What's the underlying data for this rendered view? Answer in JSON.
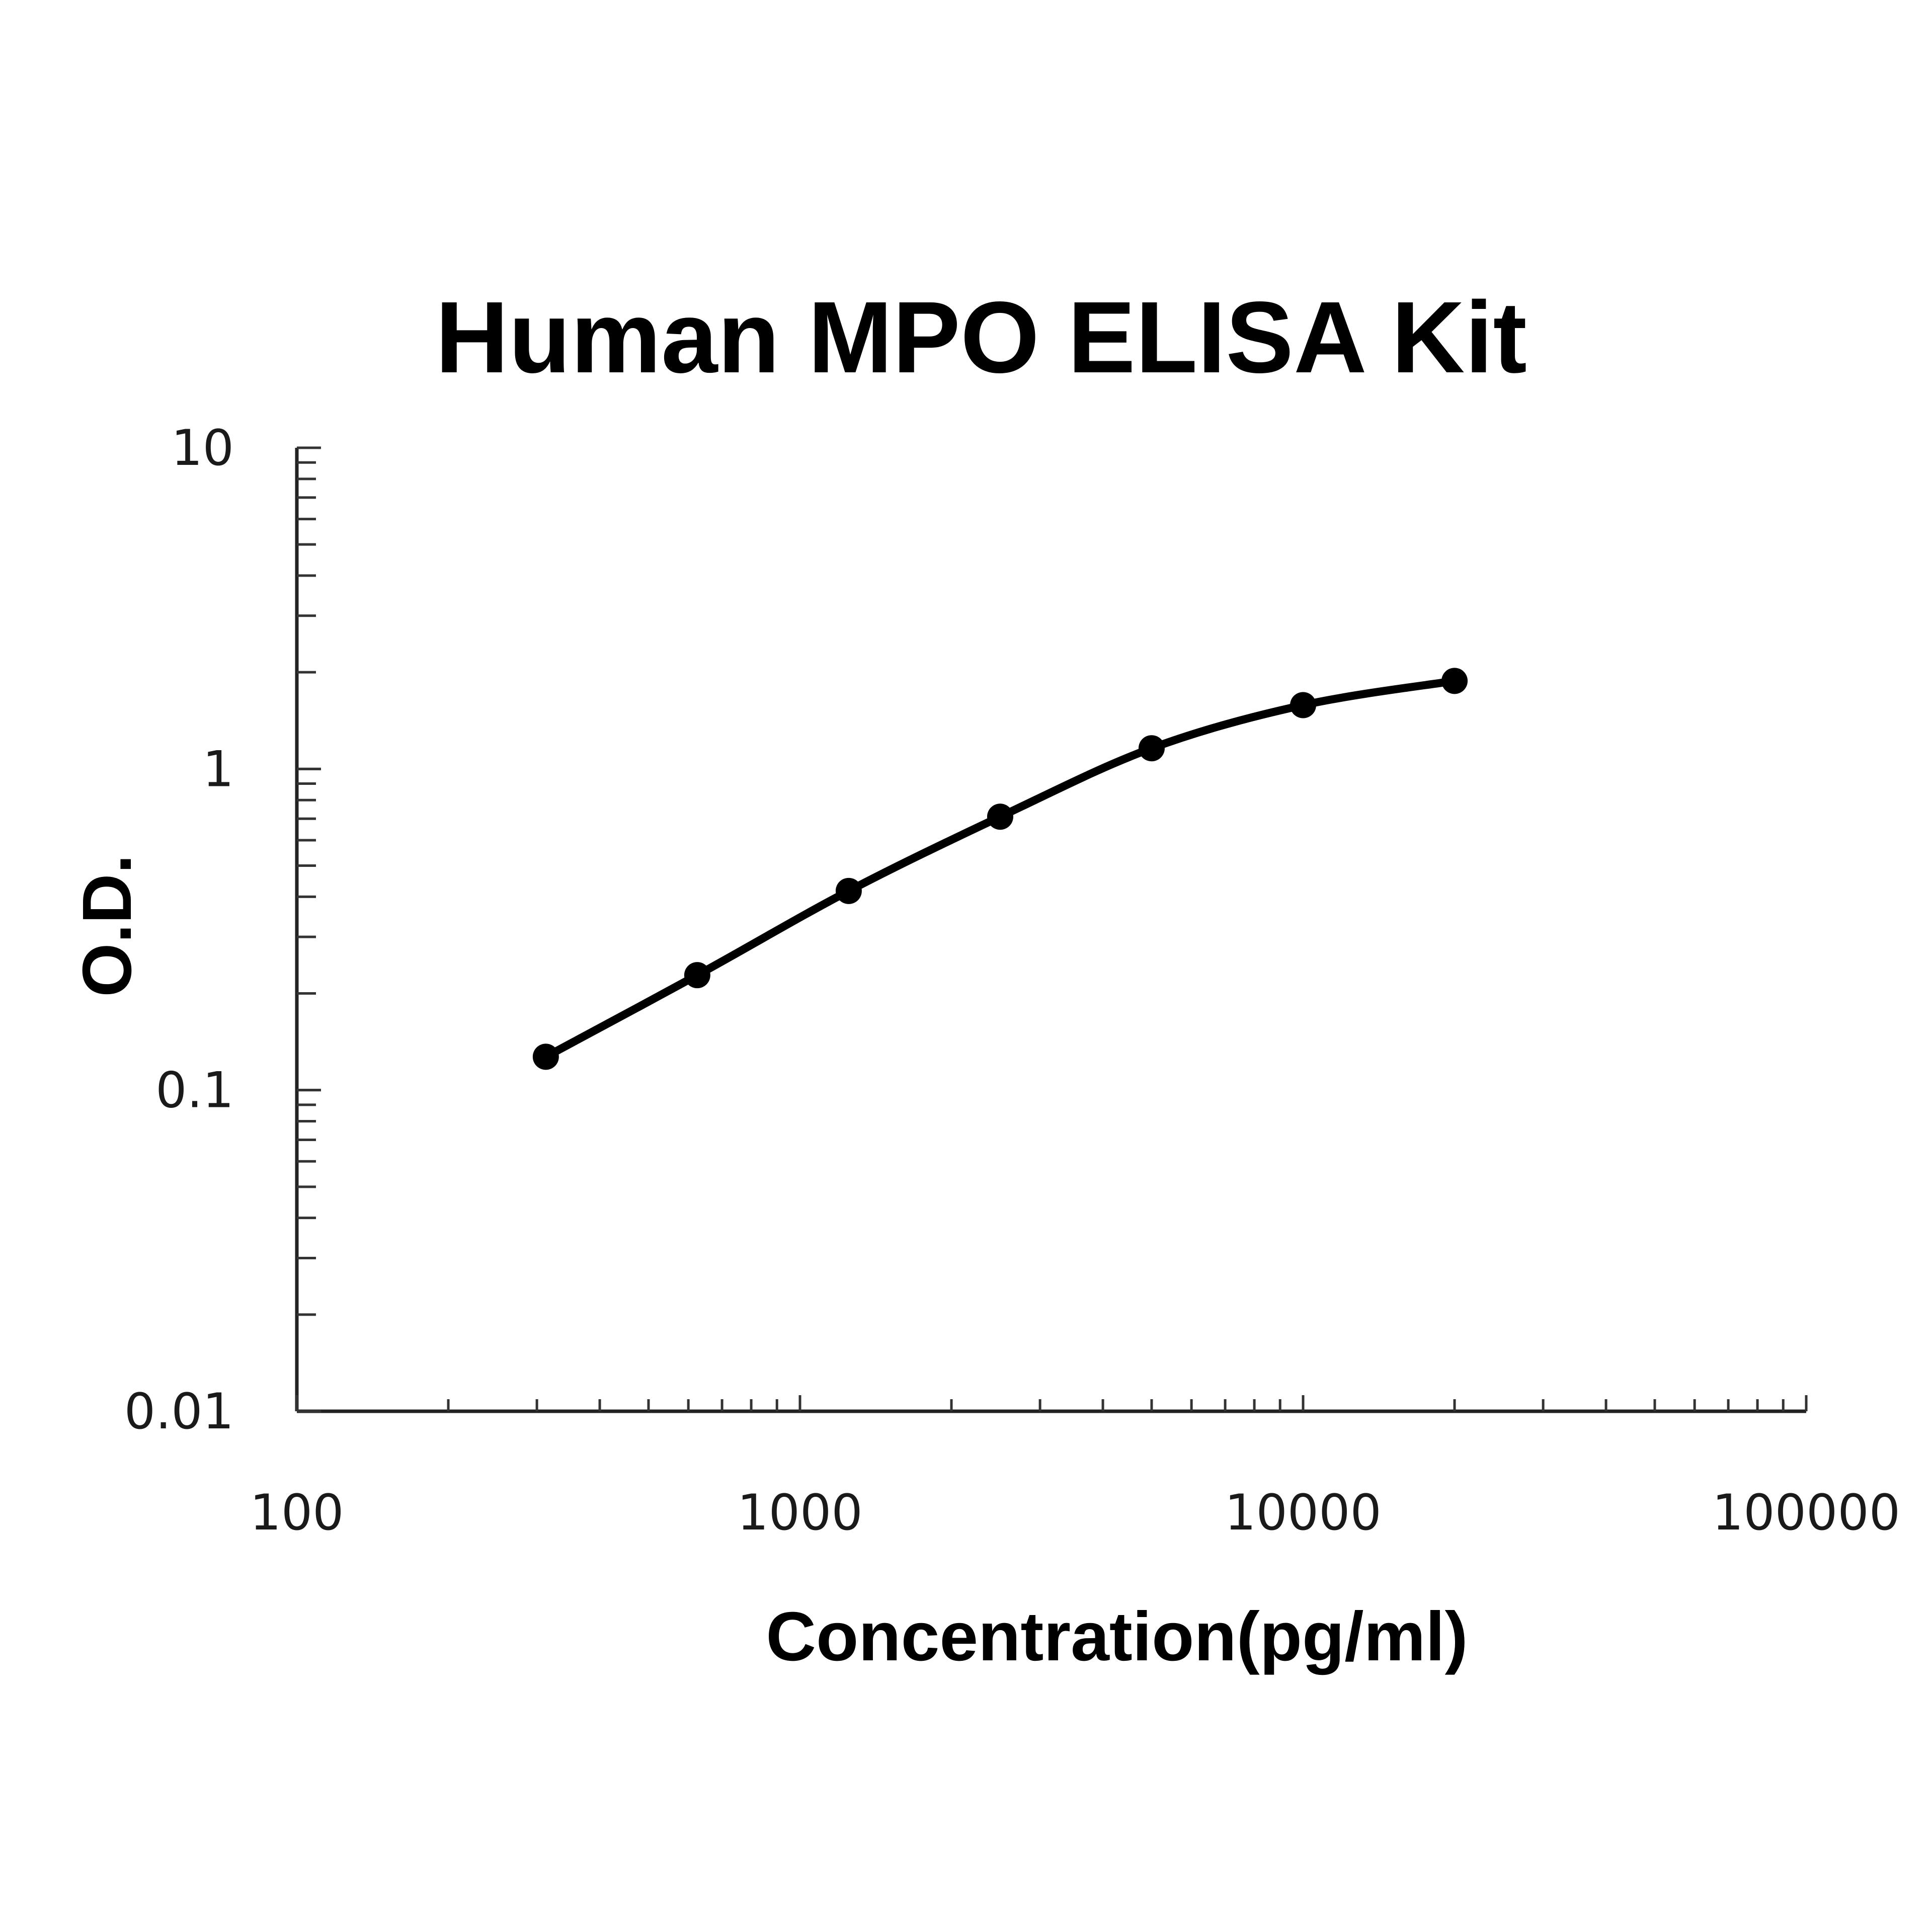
{
  "chart_data": {
    "type": "line",
    "title": "Human MPO ELISA Kit",
    "xlabel": "Concentration(pg/ml)",
    "ylabel": "O.D.",
    "x_scale": "log",
    "y_scale": "log",
    "xlim": [
      100,
      100000
    ],
    "ylim": [
      0.01,
      10
    ],
    "x_ticks": [
      {
        "value": 100,
        "label": "100"
      },
      {
        "value": 1000,
        "label": "1000"
      },
      {
        "value": 10000,
        "label": "10000"
      },
      {
        "value": 100000,
        "label": "100000"
      }
    ],
    "y_ticks": [
      {
        "value": 10,
        "label": "10"
      },
      {
        "value": 1,
        "label": "1"
      },
      {
        "value": 0.1,
        "label": "0.1"
      },
      {
        "value": 0.01,
        "label": "0.01"
      }
    ],
    "grid": false,
    "legend": "none",
    "line_color": "#000000",
    "series": [
      {
        "x": [
          312.5,
          625,
          1250,
          2500,
          5000,
          10000,
          20000
        ],
        "y": [
          0.127,
          0.228,
          0.417,
          0.71,
          1.16,
          1.58,
          1.88
        ]
      }
    ]
  }
}
